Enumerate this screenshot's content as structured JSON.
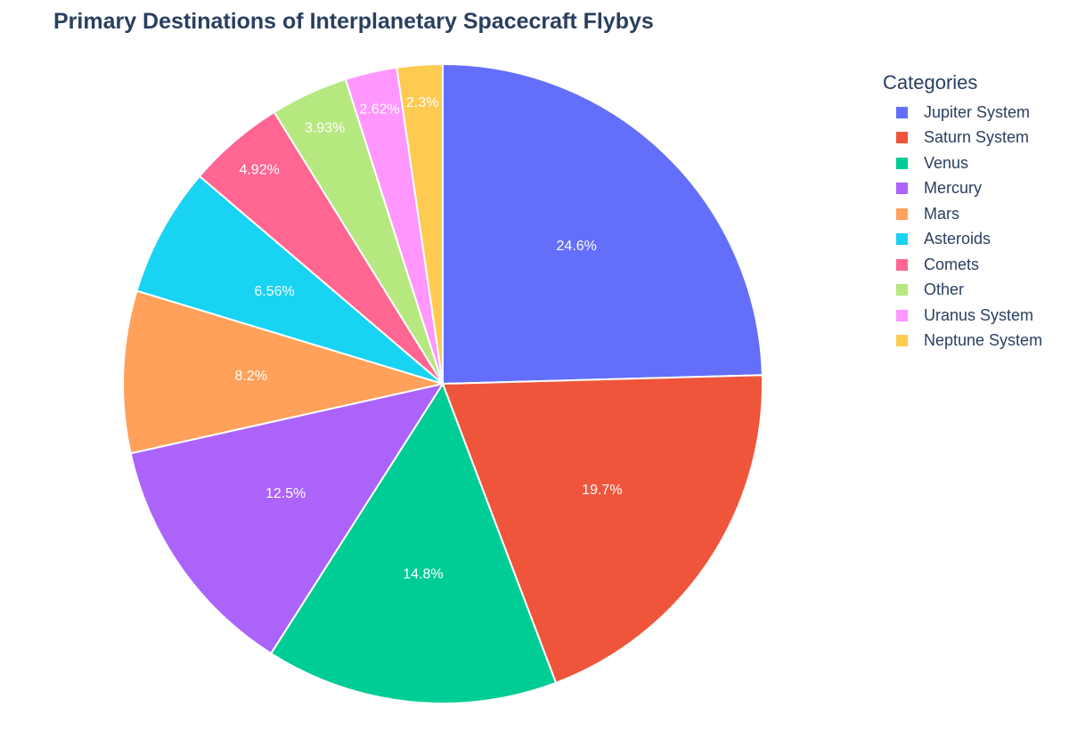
{
  "chart_data": {
    "type": "pie",
    "title": "Primary Destinations of Interplanetary Spacecraft Flybys",
    "legend_title": "Categories",
    "legend_position": "right",
    "start_angle_deg": 90,
    "direction": "clockwise",
    "categories": [
      "Jupiter System",
      "Saturn System",
      "Venus",
      "Mercury",
      "Mars",
      "Asteroids",
      "Comets",
      "Other",
      "Uranus System",
      "Neptune System"
    ],
    "values": [
      24.6,
      19.7,
      14.8,
      12.5,
      8.2,
      6.56,
      4.92,
      3.93,
      2.62,
      2.3
    ],
    "labels": [
      "24.6%",
      "19.7%",
      "14.8%",
      "12.5%",
      "8.2%",
      "6.56%",
      "4.92%",
      "3.93%",
      "2.62%",
      "2.3%"
    ],
    "colors": [
      "#636efa",
      "#ef553b",
      "#00cc96",
      "#ab63fa",
      "#ffa15a",
      "#19d3f3",
      "#ff6692",
      "#b6e880",
      "#ff97ff",
      "#fecb52"
    ],
    "slice_order_drawn": [
      0,
      9,
      8,
      7,
      6,
      5,
      4,
      3,
      2,
      1
    ]
  }
}
